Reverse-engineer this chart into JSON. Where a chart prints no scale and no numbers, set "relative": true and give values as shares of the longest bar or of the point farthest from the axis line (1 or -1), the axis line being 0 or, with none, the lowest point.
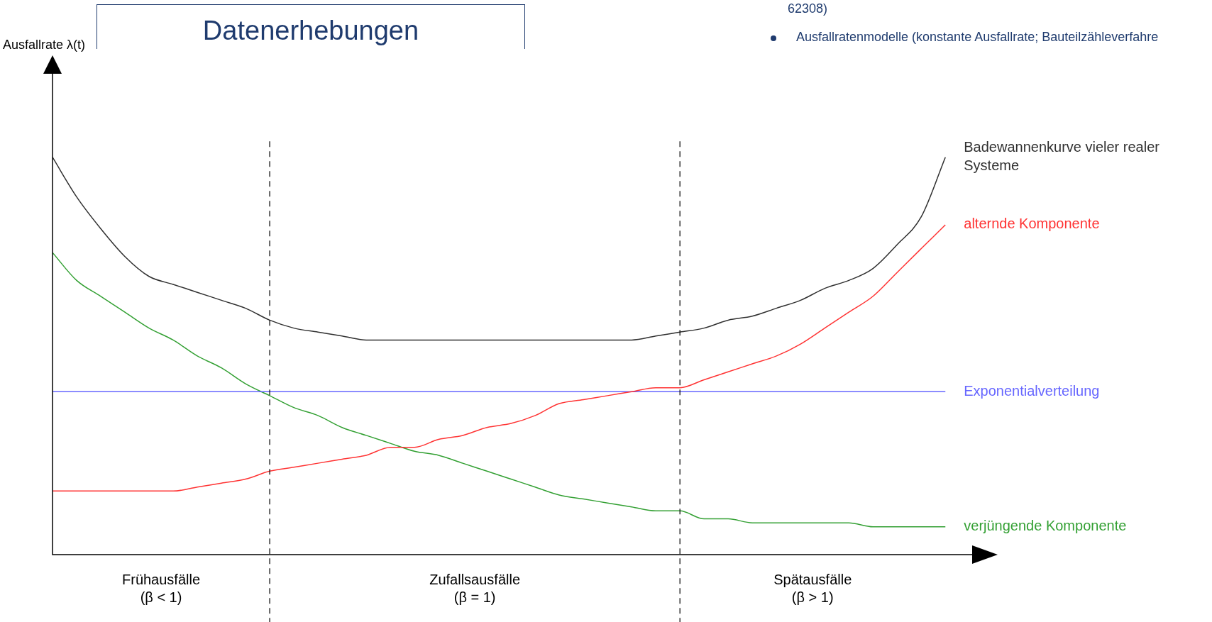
{
  "chart_data": {
    "type": "line",
    "relative": true,
    "categories": [
      null,
      null,
      null,
      null,
      null,
      null,
      null,
      null,
      null,
      null,
      null,
      null,
      null,
      null,
      null,
      null,
      null,
      null,
      null,
      null,
      null,
      null,
      null,
      null,
      null,
      null,
      null,
      null,
      null,
      null,
      null,
      null,
      null,
      null,
      null,
      null,
      null,
      null
    ],
    "series": [
      {
        "name": "Badewannenkurve vieler realer Systeme",
        "color": "#303030",
        "values": [
          1.0,
          0.9,
          0.82,
          0.75,
          0.7,
          0.68,
          0.66,
          0.64,
          0.62,
          0.59,
          0.57,
          0.56,
          0.55,
          0.54,
          0.54,
          0.54,
          0.54,
          0.54,
          0.54,
          0.54,
          0.54,
          0.54,
          0.54,
          0.54,
          0.54,
          0.55,
          0.56,
          0.57,
          0.59,
          0.6,
          0.62,
          0.64,
          0.67,
          0.69,
          0.72,
          0.78,
          0.85,
          1.0
        ]
      },
      {
        "name": "alternde Komponente",
        "color": "#ff3333",
        "values": [
          0.16,
          0.16,
          0.16,
          0.16,
          0.16,
          0.16,
          0.17,
          0.18,
          0.19,
          0.21,
          0.22,
          0.23,
          0.24,
          0.25,
          0.27,
          0.27,
          0.29,
          0.3,
          0.32,
          0.33,
          0.35,
          0.38,
          0.39,
          0.4,
          0.41,
          0.42,
          0.42,
          0.44,
          0.46,
          0.48,
          0.5,
          0.53,
          0.57,
          0.61,
          0.65,
          0.71,
          0.77,
          0.83
        ]
      },
      {
        "name": "Exponentialverteilung",
        "color": "#6666ff",
        "values": [
          0.41,
          0.41,
          0.41,
          0.41,
          0.41,
          0.41,
          0.41,
          0.41,
          0.41,
          0.41,
          0.41,
          0.41,
          0.41,
          0.41,
          0.41,
          0.41,
          0.41,
          0.41,
          0.41,
          0.41,
          0.41,
          0.41,
          0.41,
          0.41,
          0.41,
          0.41,
          0.41,
          0.41,
          0.41,
          0.41,
          0.41,
          0.41,
          0.41,
          0.41,
          0.41,
          0.41,
          0.41,
          0.41
        ]
      },
      {
        "name": "verjüngende Komponente",
        "color": "#33a033",
        "values": [
          0.76,
          0.69,
          0.65,
          0.61,
          0.57,
          0.54,
          0.5,
          0.47,
          0.43,
          0.4,
          0.37,
          0.35,
          0.32,
          0.3,
          0.28,
          0.26,
          0.25,
          0.23,
          0.21,
          0.19,
          0.17,
          0.15,
          0.14,
          0.13,
          0.12,
          0.11,
          0.11,
          0.09,
          0.09,
          0.08,
          0.08,
          0.08,
          0.08,
          0.08,
          0.07,
          0.07,
          0.07,
          0.07
        ]
      }
    ],
    "annotations": [
      "Frühausfälle\n(β < 1)",
      "Zufallsausfälle\n(β = 1)",
      "Spätausfälle\n(β > 1)",
      "Datenerhebungen",
      "62308)",
      "Ausfallratenmodelle (konstante Ausfallrate; Bauteilzähleverfahre",
      "Ausfallrate λ(t)"
    ],
    "marker": "none",
    "line_style": "solid",
    "legend": false,
    "tick_labels": false
  }
}
